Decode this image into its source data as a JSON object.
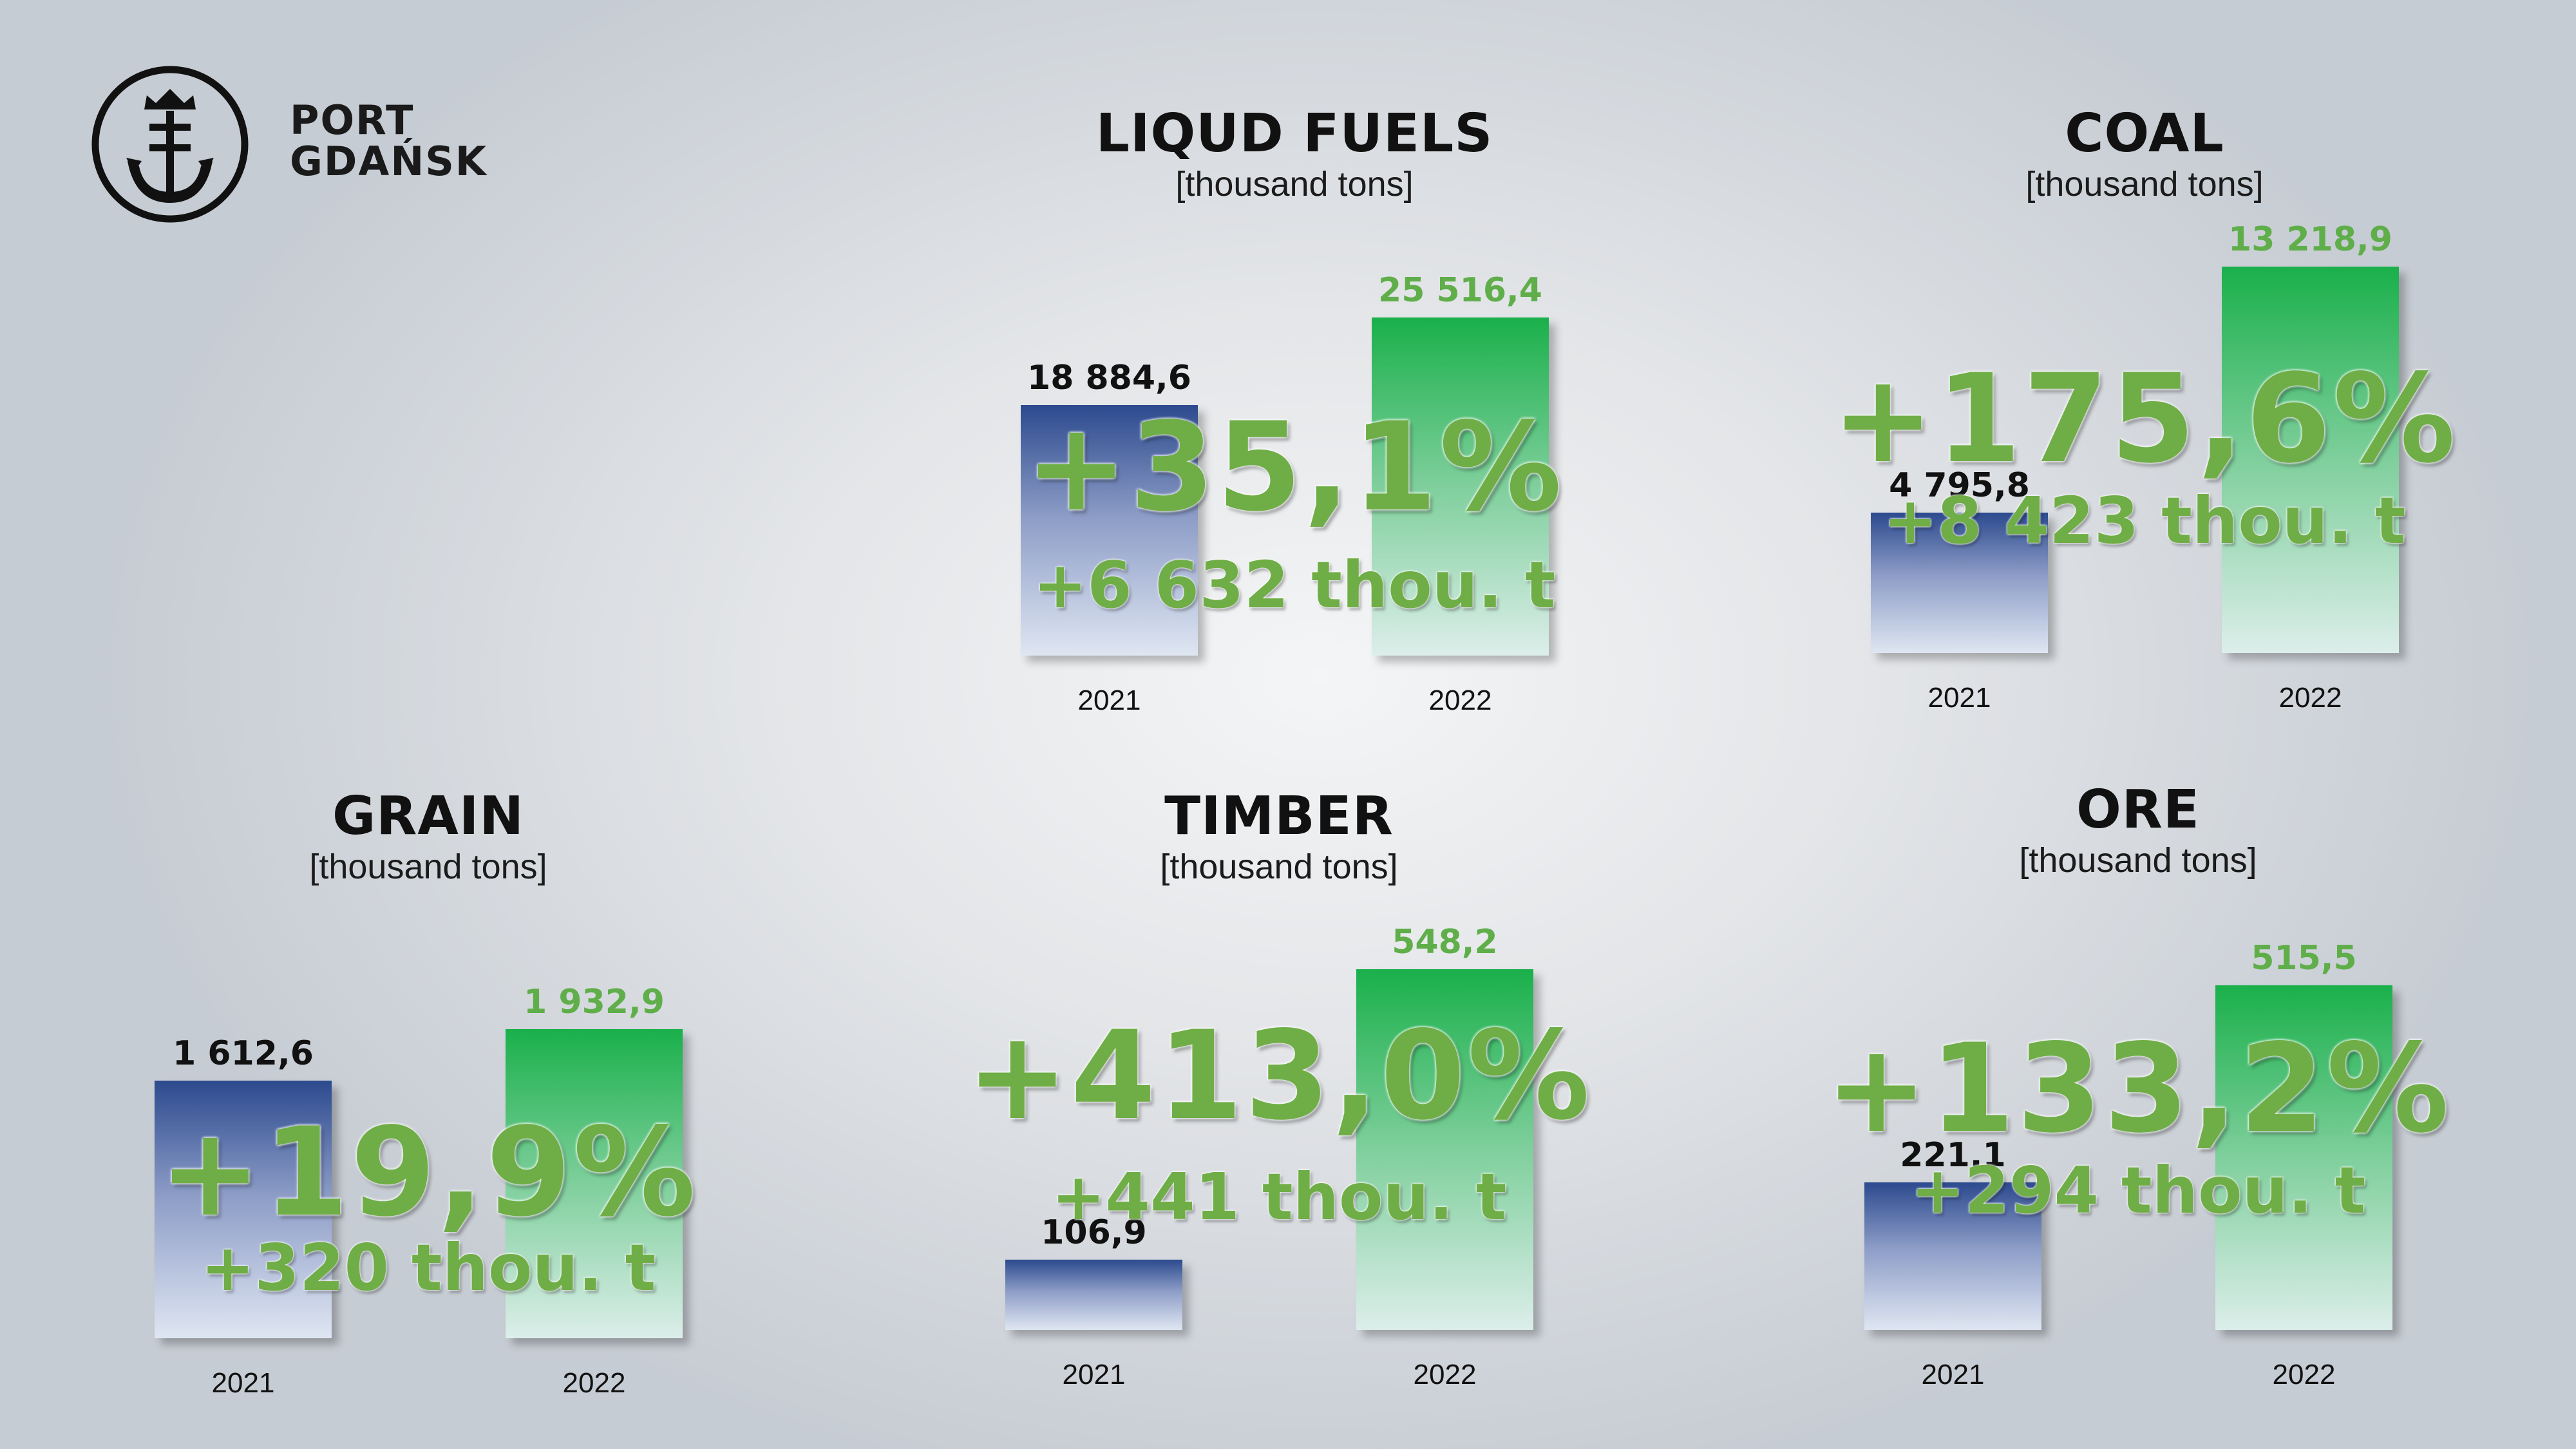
{
  "brand": {
    "line1": "PORT",
    "line2": "GDAŃSK"
  },
  "colors": {
    "bar_2021": "#2c4a8e",
    "bar_2022": "#1ab04b",
    "highlight": "#6fae46"
  },
  "chart_data": [
    {
      "type": "bar",
      "title": "LIQUD FUELS",
      "subtitle": "[thousand tons]",
      "categories": [
        "2021",
        "2022"
      ],
      "values": [
        18884.6,
        25516.4
      ],
      "value_labels": [
        "18 884,6",
        "25 516,4"
      ],
      "change_pct": "+35,1%",
      "change_abs": "+6 632 thou. t"
    },
    {
      "type": "bar",
      "title": "COAL",
      "subtitle": "[thousand tons]",
      "categories": [
        "2021",
        "2022"
      ],
      "values": [
        4795.8,
        13218.9
      ],
      "value_labels": [
        "4 795,8",
        "13 218,9"
      ],
      "change_pct": "+175,6%",
      "change_abs": "+8 423 thou. t"
    },
    {
      "type": "bar",
      "title": "GRAIN",
      "subtitle": "[thousand tons]",
      "categories": [
        "2021",
        "2022"
      ],
      "values": [
        1612.6,
        1932.9
      ],
      "value_labels": [
        "1 612,6",
        "1 932,9"
      ],
      "change_pct": "+19,9%",
      "change_abs": "+320 thou. t"
    },
    {
      "type": "bar",
      "title": "TIMBER",
      "subtitle": "[thousand tons]",
      "categories": [
        "2021",
        "2022"
      ],
      "values": [
        106.9,
        548.2
      ],
      "value_labels": [
        "106,9",
        "548,2"
      ],
      "change_pct": "+413,0%",
      "change_abs": "+441 thou. t"
    },
    {
      "type": "bar",
      "title": "ORE",
      "subtitle": "[thousand tons]",
      "categories": [
        "2021",
        "2022"
      ],
      "values": [
        221.1,
        515.5
      ],
      "value_labels": [
        "221,1",
        "515,5"
      ],
      "change_pct": "+133,2%",
      "change_abs": "+294 thou. t"
    }
  ]
}
